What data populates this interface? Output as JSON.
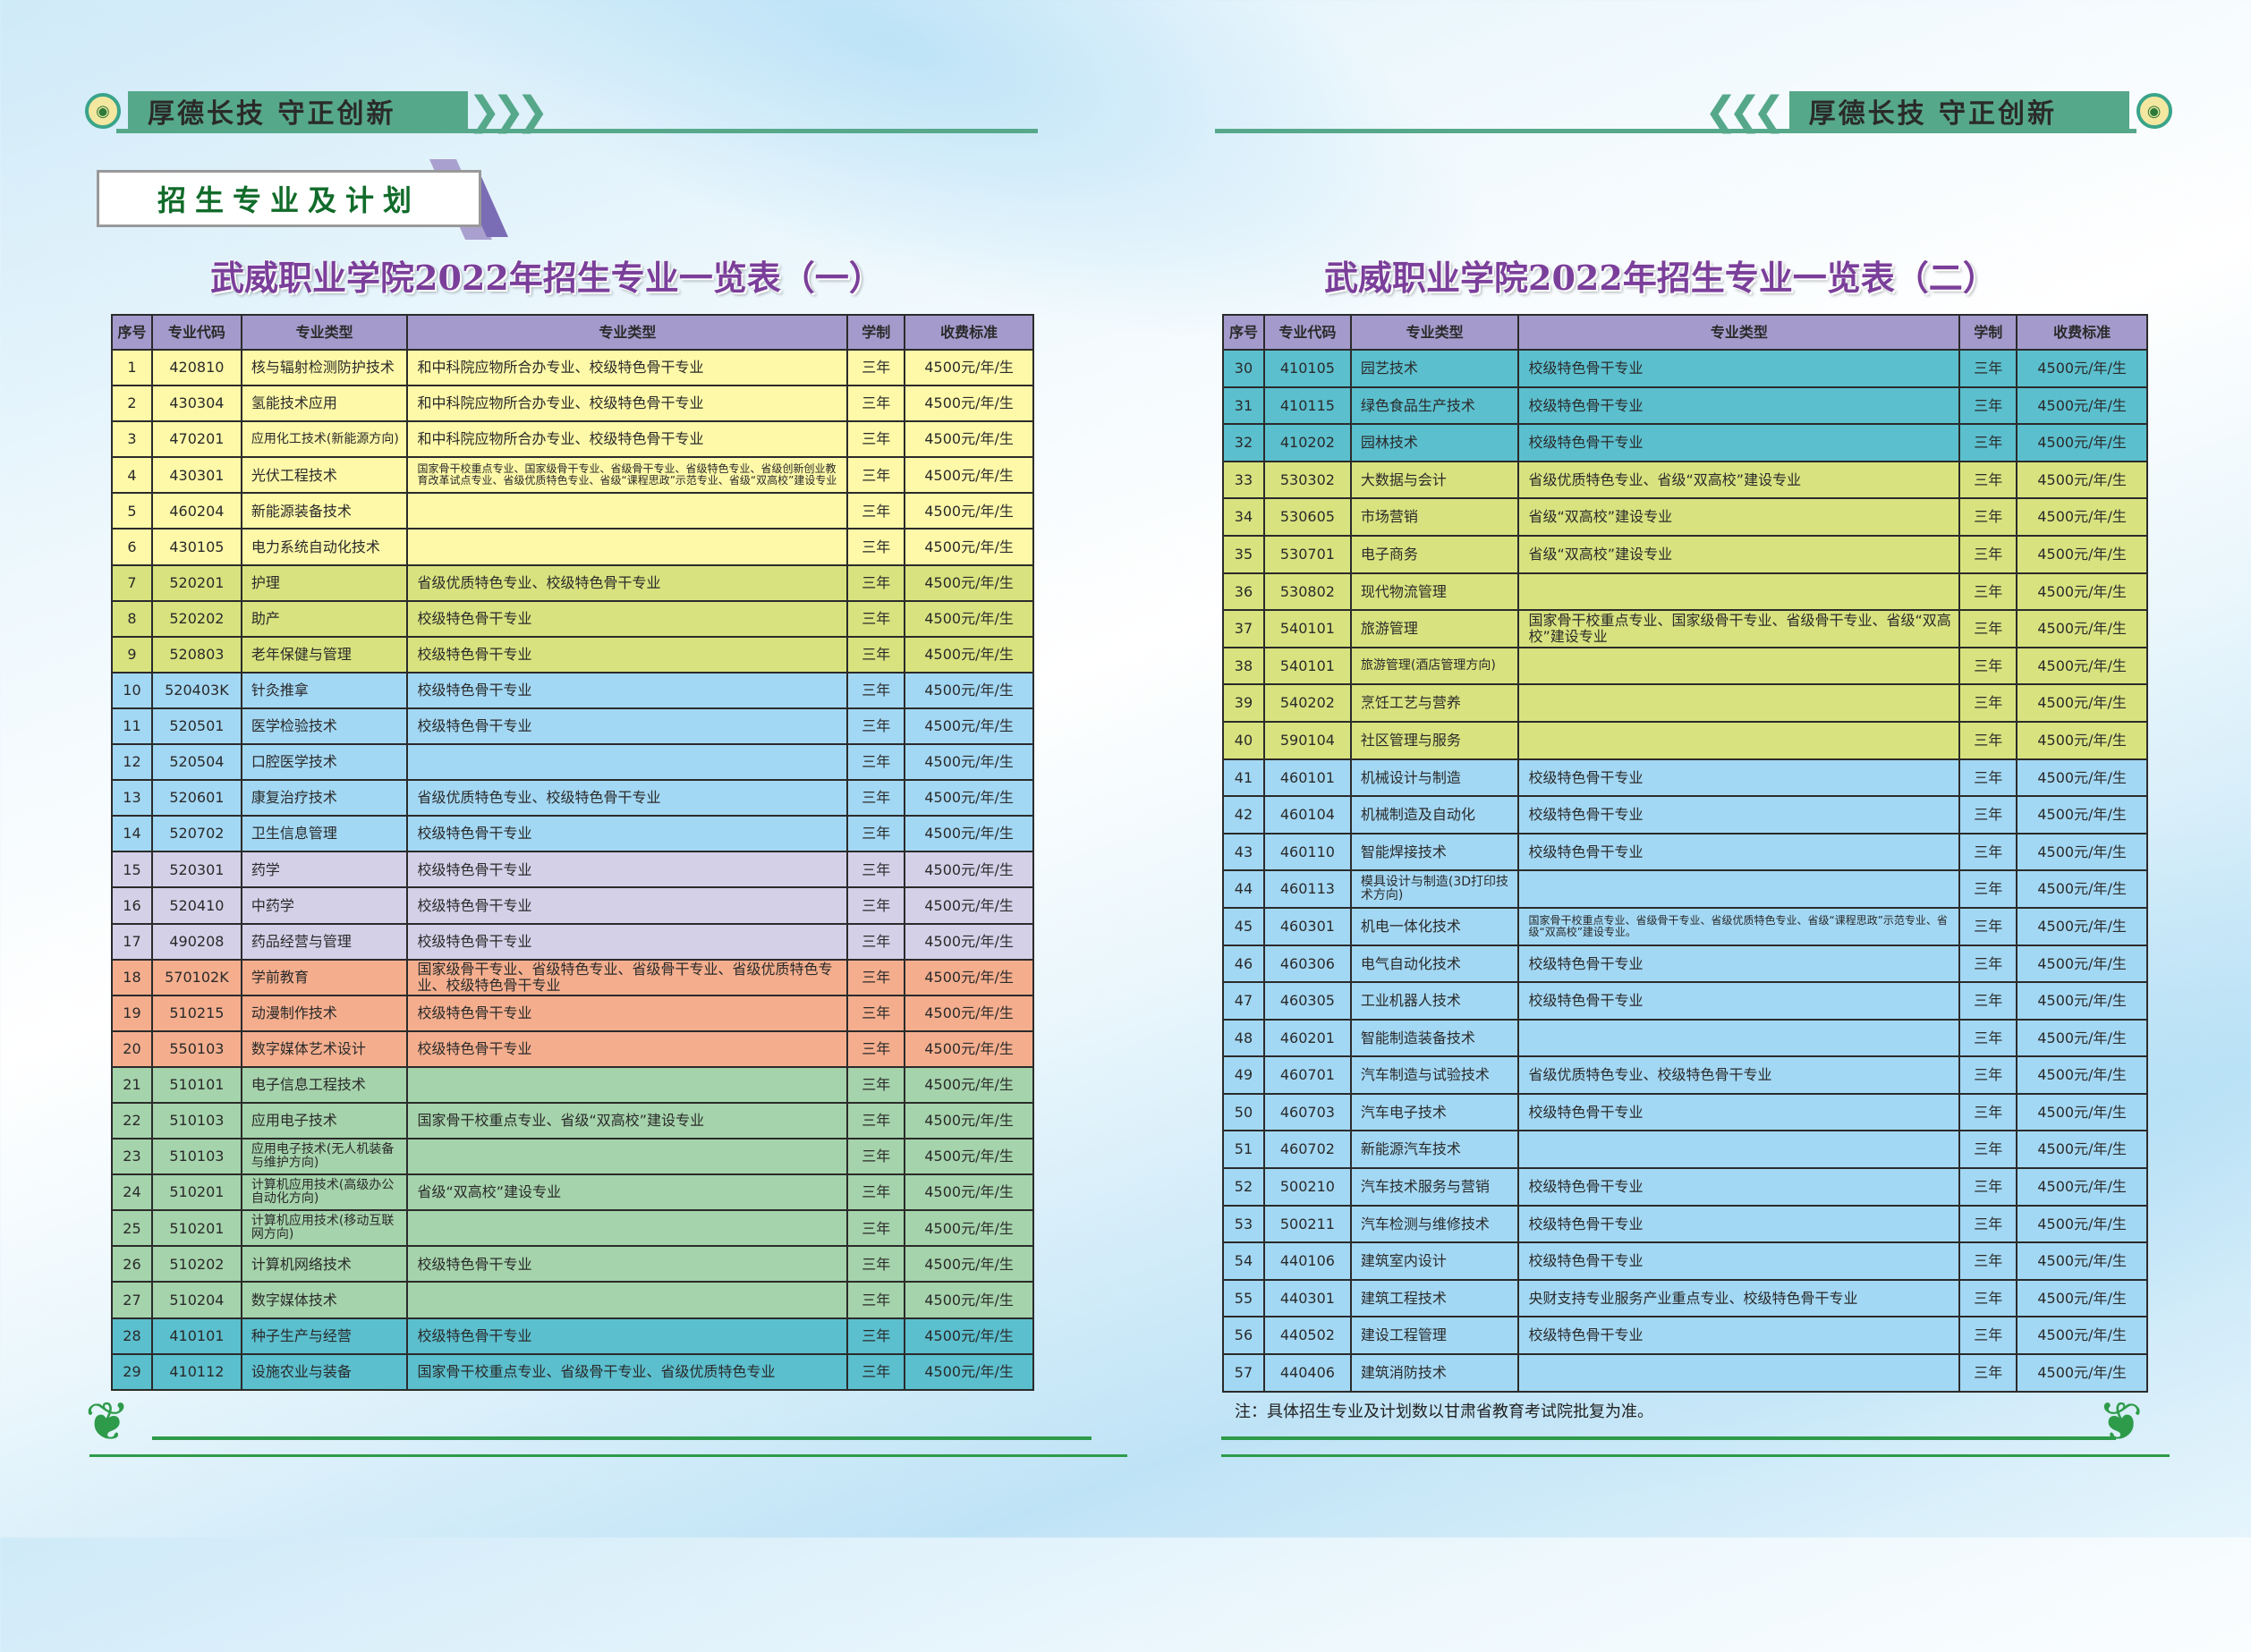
{
  "slogan": "厚德长技  守正创新",
  "section_title": "招生专业及计划",
  "left_title": "武威职业学院2022年招生专业一览表（一）",
  "right_title": "武威职业学院2022年招生专业一览表（二）",
  "headers": [
    "序号",
    "专业代码",
    "专业类型",
    "专业类型",
    "学制",
    "收费标准"
  ],
  "duration": "三年",
  "fee": "4500元/年/生",
  "colors": {
    "header": "#a49bcc",
    "yellow": "#fef9a8",
    "olive": "#d8e37f",
    "blue": "#a3d8f4",
    "lavender": "#d4d0e8",
    "salmon": "#f4ae8e",
    "green": "#a5d3ab",
    "teal": "#5bbfce",
    "brand_green": "#56a88a",
    "title_purple": "#7a3f9a"
  },
  "left_rows": [
    [
      "1",
      "420810",
      "核与辐射检测防护技术",
      "和中科院应物所合办专业、校级特色骨干专业",
      "yellow"
    ],
    [
      "2",
      "430304",
      "氢能技术应用",
      "和中科院应物所合办专业、校级特色骨干专业",
      "yellow"
    ],
    [
      "3",
      "470201",
      "应用化工技术(新能源方向)",
      "和中科院应物所合办专业、校级特色骨干专业",
      "yellow"
    ],
    [
      "4",
      "430301",
      "光伏工程技术",
      "国家骨干校重点专业、国家级骨干专业、省级骨干专业、省级特色专业、省级创新创业教育改革试点专业、省级优质特色专业、省级“课程思政”示范专业、省级“双高校”建设专业",
      "yellow"
    ],
    [
      "5",
      "460204",
      "新能源装备技术",
      "",
      "yellow"
    ],
    [
      "6",
      "430105",
      "电力系统自动化技术",
      "",
      "yellow"
    ],
    [
      "7",
      "520201",
      "护理",
      "省级优质特色专业、校级特色骨干专业",
      "olive"
    ],
    [
      "8",
      "520202",
      "助产",
      "校级特色骨干专业",
      "olive"
    ],
    [
      "9",
      "520803",
      "老年保健与管理",
      "校级特色骨干专业",
      "olive"
    ],
    [
      "10",
      "520403K",
      "针灸推拿",
      "校级特色骨干专业",
      "blue"
    ],
    [
      "11",
      "520501",
      "医学检验技术",
      "校级特色骨干专业",
      "blue"
    ],
    [
      "12",
      "520504",
      "口腔医学技术",
      "",
      "blue"
    ],
    [
      "13",
      "520601",
      "康复治疗技术",
      "省级优质特色专业、校级特色骨干专业",
      "blue"
    ],
    [
      "14",
      "520702",
      "卫生信息管理",
      "校级特色骨干专业",
      "blue"
    ],
    [
      "15",
      "520301",
      "药学",
      "校级特色骨干专业",
      "lavender"
    ],
    [
      "16",
      "520410",
      "中药学",
      "校级特色骨干专业",
      "lavender"
    ],
    [
      "17",
      "490208",
      "药品经营与管理",
      "校级特色骨干专业",
      "lavender"
    ],
    [
      "18",
      "570102K",
      "学前教育",
      "国家级骨干专业、省级特色专业、省级骨干专业、省级优质特色专业、校级特色骨干专业",
      "salmon"
    ],
    [
      "19",
      "510215",
      "动漫制作技术",
      "校级特色骨干专业",
      "salmon"
    ],
    [
      "20",
      "550103",
      "数字媒体艺术设计",
      "校级特色骨干专业",
      "salmon"
    ],
    [
      "21",
      "510101",
      "电子信息工程技术",
      "",
      "green"
    ],
    [
      "22",
      "510103",
      "应用电子技术",
      "国家骨干校重点专业、省级“双高校”建设专业",
      "green"
    ],
    [
      "23",
      "510103",
      "应用电子技术(无人机装备与维护方向)",
      "",
      "green"
    ],
    [
      "24",
      "510201",
      "计算机应用技术(高级办公自动化方向)",
      "省级“双高校”建设专业",
      "green"
    ],
    [
      "25",
      "510201",
      "计算机应用技术(移动互联网方向)",
      "",
      "green"
    ],
    [
      "26",
      "510202",
      "计算机网络技术",
      "校级特色骨干专业",
      "green"
    ],
    [
      "27",
      "510204",
      "数字媒体技术",
      "",
      "green"
    ],
    [
      "28",
      "410101",
      "种子生产与经营",
      "校级特色骨干专业",
      "teal"
    ],
    [
      "29",
      "410112",
      "设施农业与装备",
      "国家骨干校重点专业、省级骨干专业、省级优质特色专业",
      "teal"
    ]
  ],
  "right_rows": [
    [
      "30",
      "410105",
      "园艺技术",
      "校级特色骨干专业",
      "teal"
    ],
    [
      "31",
      "410115",
      "绿色食品生产技术",
      "校级特色骨干专业",
      "teal"
    ],
    [
      "32",
      "410202",
      "园林技术",
      "校级特色骨干专业",
      "teal"
    ],
    [
      "33",
      "530302",
      "大数据与会计",
      "省级优质特色专业、省级“双高校”建设专业",
      "olive"
    ],
    [
      "34",
      "530605",
      "市场营销",
      "省级“双高校”建设专业",
      "olive"
    ],
    [
      "35",
      "530701",
      "电子商务",
      "省级“双高校”建设专业",
      "olive"
    ],
    [
      "36",
      "530802",
      "现代物流管理",
      "",
      "olive"
    ],
    [
      "37",
      "540101",
      "旅游管理",
      "国家骨干校重点专业、国家级骨干专业、省级骨干专业、省级“双高校”建设专业",
      "olive"
    ],
    [
      "38",
      "540101",
      "旅游管理(酒店管理方向)",
      "",
      "olive"
    ],
    [
      "39",
      "540202",
      "烹饪工艺与营养",
      "",
      "olive"
    ],
    [
      "40",
      "590104",
      "社区管理与服务",
      "",
      "olive"
    ],
    [
      "41",
      "460101",
      "机械设计与制造",
      "校级特色骨干专业",
      "blue"
    ],
    [
      "42",
      "460104",
      "机械制造及自动化",
      "校级特色骨干专业",
      "blue"
    ],
    [
      "43",
      "460110",
      "智能焊接技术",
      "校级特色骨干专业",
      "blue"
    ],
    [
      "44",
      "460113",
      "模具设计与制造(3D打印技术方向)",
      "",
      "blue"
    ],
    [
      "45",
      "460301",
      "机电一体化技术",
      "国家骨干校重点专业、省级骨干专业、省级优质特色专业、省级“课程思政”示范专业、省级“双高校”建设专业。",
      "blue"
    ],
    [
      "46",
      "460306",
      "电气自动化技术",
      "校级特色骨干专业",
      "blue"
    ],
    [
      "47",
      "460305",
      "工业机器人技术",
      "校级特色骨干专业",
      "blue"
    ],
    [
      "48",
      "460201",
      "智能制造装备技术",
      "",
      "blue"
    ],
    [
      "49",
      "460701",
      "汽车制造与试验技术",
      "省级优质特色专业、校级特色骨干专业",
      "blue"
    ],
    [
      "50",
      "460703",
      "汽车电子技术",
      "校级特色骨干专业",
      "blue"
    ],
    [
      "51",
      "460702",
      "新能源汽车技术",
      "",
      "blue"
    ],
    [
      "52",
      "500210",
      "汽车技术服务与营销",
      "校级特色骨干专业",
      "blue"
    ],
    [
      "53",
      "500211",
      "汽车检测与维修技术",
      "校级特色骨干专业",
      "blue"
    ],
    [
      "54",
      "440106",
      "建筑室内设计",
      "校级特色骨干专业",
      "blue"
    ],
    [
      "55",
      "440301",
      "建筑工程技术",
      "央财支持专业服务产业重点专业、校级特色骨干专业",
      "blue"
    ],
    [
      "56",
      "440502",
      "建设工程管理",
      "校级特色骨干专业",
      "blue"
    ],
    [
      "57",
      "440406",
      "建筑消防技术",
      "",
      "blue"
    ]
  ],
  "note": "注：具体招生专业及计划数以甘肃省教育考试院批复为准。"
}
